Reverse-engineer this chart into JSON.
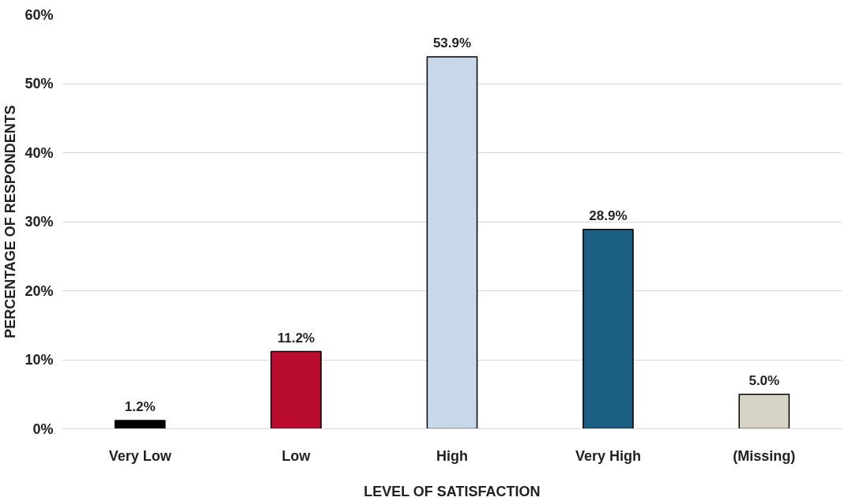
{
  "chart_data": {
    "type": "bar",
    "xlabel": "LEVEL OF SATISFACTION",
    "ylabel": "PERCENTAGE OF RESPONDENTS",
    "categories": [
      "Very Low",
      "Low",
      "High",
      "Very High",
      "(Missing)"
    ],
    "values": [
      1.2,
      11.2,
      53.9,
      28.9,
      5.0
    ],
    "colors": [
      "#000000",
      "#ba0c2f",
      "#c8d8ea",
      "#1a5f82",
      "#d6d3c4"
    ],
    "value_labels": [
      "1.2%",
      "11.2%",
      "53.9%",
      "28.9%",
      "5.0%"
    ],
    "ylim": [
      0,
      60
    ],
    "yticks": [
      {
        "value": 0,
        "label": "0%"
      },
      {
        "value": 10,
        "label": "10%"
      },
      {
        "value": 20,
        "label": "20%"
      },
      {
        "value": 30,
        "label": "30%"
      },
      {
        "value": 40,
        "label": "40%"
      },
      {
        "value": 50,
        "label": "50%"
      },
      {
        "value": 60,
        "label": "60%"
      }
    ],
    "grid": "y"
  }
}
